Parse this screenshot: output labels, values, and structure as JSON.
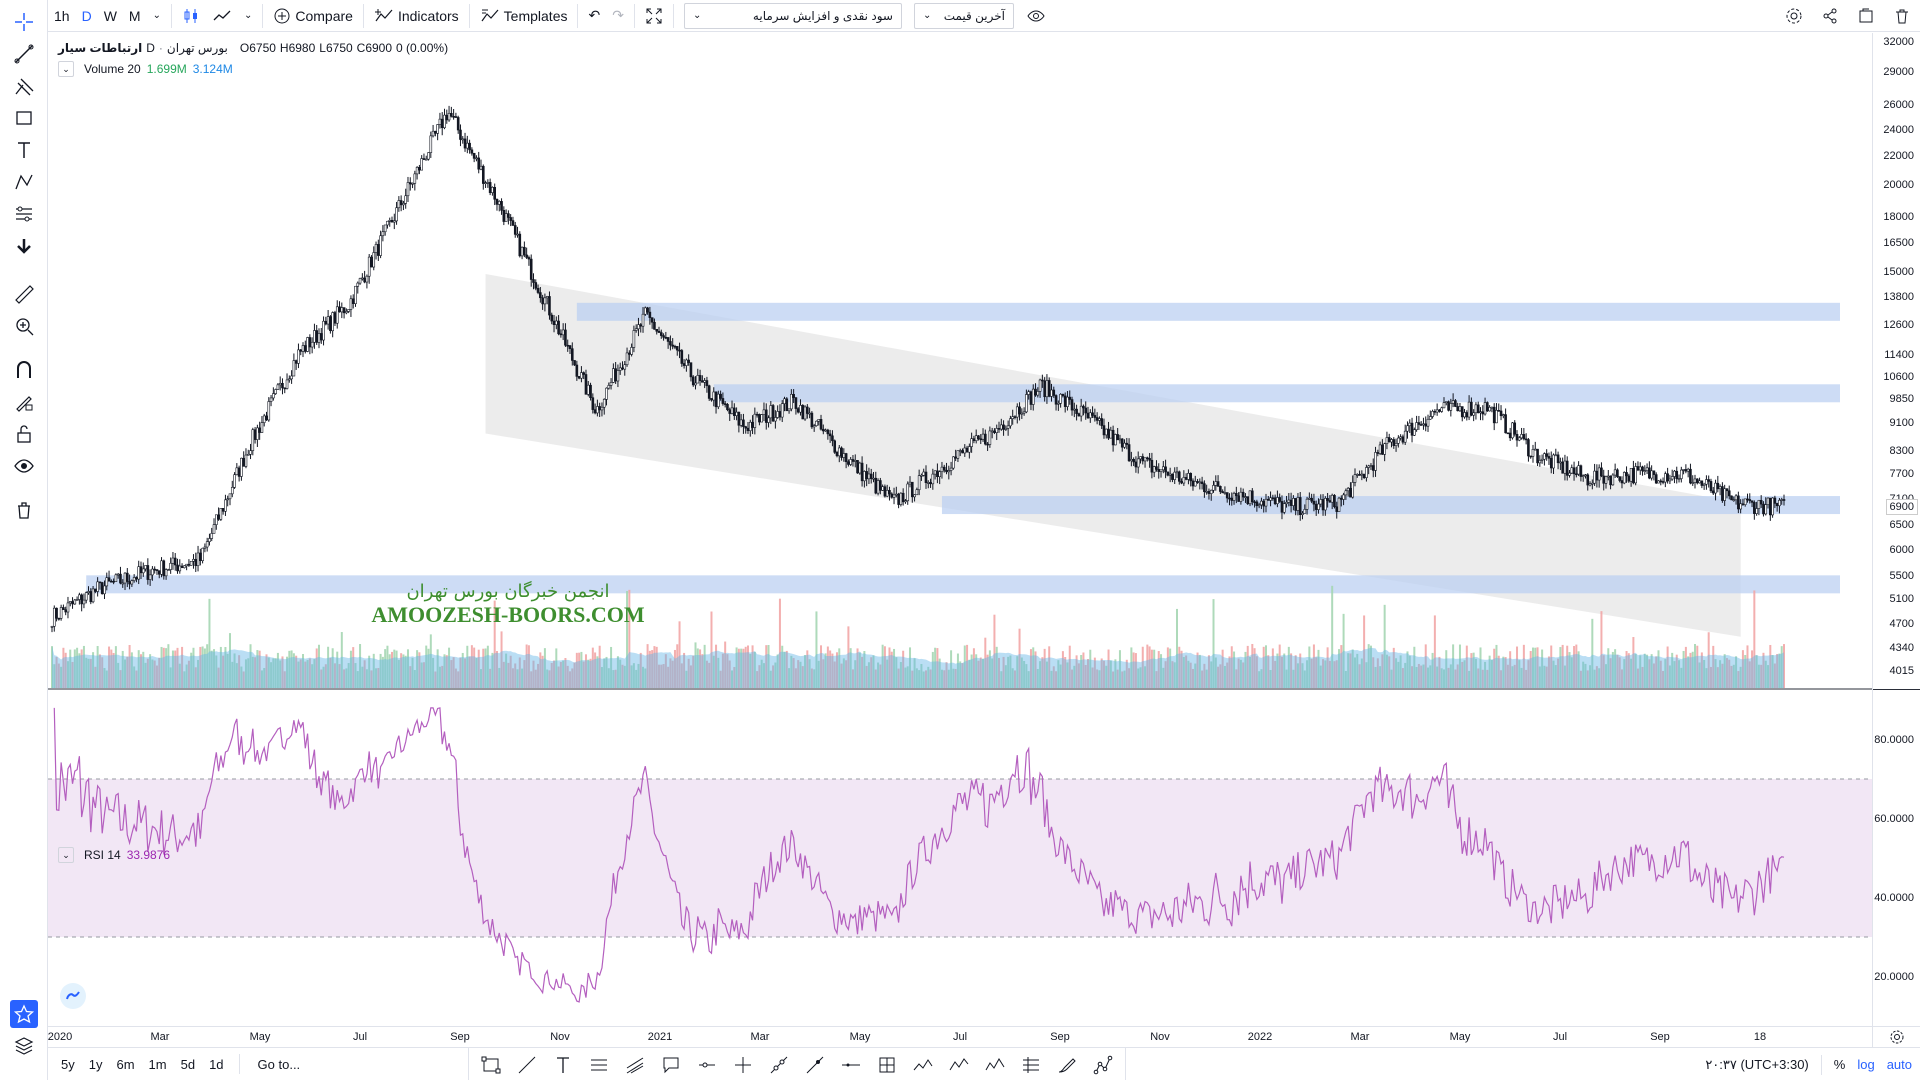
{
  "toolbar": {
    "intervals": [
      "1h",
      "D",
      "W",
      "M"
    ],
    "active_interval": "D",
    "compare_label": "Compare",
    "indicators_label": "Indicators",
    "templates_label": "Templates",
    "symbol_select": "سود نقدی و افزایش سرمایه",
    "price_select": "آخرین قیمت"
  },
  "legend": {
    "symbol": "ارتباطات سیار",
    "interval": "D",
    "exchange": "بورس تهران",
    "open": "O6750",
    "high": "H6980",
    "low": "L6750",
    "close": "C6900",
    "change": "0 (0.00%)"
  },
  "volume_legend": {
    "label": "Volume 20",
    "value1": "1.699M",
    "value2": "3.124M"
  },
  "rsi_legend": {
    "label": "RSI 14",
    "value": "33.9876"
  },
  "watermark": {
    "fa": "انجمن خبرگان بورس تهران",
    "en": "AMOOZESH-BOORS.COM"
  },
  "price_axis": {
    "labels": [
      "32000",
      "29000",
      "26000",
      "24000",
      "22000",
      "20000",
      "18000",
      "16500",
      "15000",
      "13800",
      "12600",
      "11400",
      "10600",
      "9850",
      "9100",
      "8300",
      "7700",
      "7100",
      "6500",
      "6000",
      "5500",
      "5100",
      "4700",
      "4340",
      "4015"
    ],
    "current": "6900",
    "rsi_labels": [
      "80.0000",
      "60.0000",
      "40.0000",
      "20.0000"
    ]
  },
  "time_axis": [
    "2020",
    "Mar",
    "May",
    "Jul",
    "Sep",
    "Nov",
    "2021",
    "Mar",
    "May",
    "Jul",
    "Sep",
    "Nov",
    "2022",
    "Mar",
    "May",
    "Jul",
    "Sep",
    "18"
  ],
  "bottom_bar": {
    "ranges": [
      "5y",
      "1y",
      "6m",
      "1m",
      "5d",
      "1d"
    ],
    "goto": "Go to...",
    "timezone": "۲۰:۳۷ (UTC+3:30)",
    "percent": "%",
    "log": "log",
    "auto": "auto"
  },
  "chart_data": {
    "type": "candlestick",
    "scale": "log",
    "price_range": [
      3800,
      33000
    ],
    "rsi_levels": [
      70,
      30
    ],
    "close_series": [
      [
        "2019-12",
        4800
      ],
      [
        "2020-01",
        5300
      ],
      [
        "2020-02",
        5600
      ],
      [
        "2020-03",
        5800
      ],
      [
        "2020-04",
        8500
      ],
      [
        "2020-05",
        11500
      ],
      [
        "2020-06",
        13500
      ],
      [
        "2020-07",
        18500
      ],
      [
        "2020-08",
        25500
      ],
      [
        "2020-09",
        19000
      ],
      [
        "2020-10",
        13500
      ],
      [
        "2020-11",
        9500
      ],
      [
        "2020-12",
        13000
      ],
      [
        "2021-01",
        10500
      ],
      [
        "2021-02",
        9000
      ],
      [
        "2021-03",
        9800
      ],
      [
        "2021-04",
        8200
      ],
      [
        "2021-05",
        7000
      ],
      [
        "2021-06",
        7900
      ],
      [
        "2021-07",
        8800
      ],
      [
        "2021-08",
        10300
      ],
      [
        "2021-09",
        9200
      ],
      [
        "2021-10",
        8000
      ],
      [
        "2021-11",
        7500
      ],
      [
        "2021-12",
        7200
      ],
      [
        "2022-01",
        6900
      ],
      [
        "2022-02",
        7000
      ],
      [
        "2022-03",
        8500
      ],
      [
        "2022-04",
        9500
      ],
      [
        "2022-05",
        9600
      ],
      [
        "2022-06",
        8200
      ],
      [
        "2022-07",
        7600
      ],
      [
        "2022-08",
        7700
      ],
      [
        "2022-09",
        7700
      ],
      [
        "2022-10",
        7000
      ],
      [
        "2022-11",
        6900
      ]
    ],
    "support_resistance_zones": [
      13150,
      10050,
      6950,
      5350
    ]
  },
  "colors": {
    "zone": "#bcd0f2",
    "channel": "#e6e6e6",
    "rsi_line": "#b45fbf",
    "rsi_band": "#f0e3f3",
    "vol_up": "#a5d6b3",
    "vol_down": "#f2a6a6",
    "vol_ma": "#67b6e6",
    "accent": "#2962ff"
  }
}
